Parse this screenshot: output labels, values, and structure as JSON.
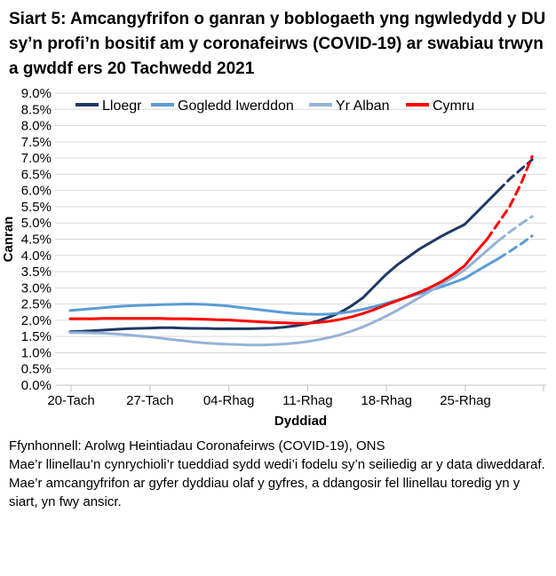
{
  "title": "Siart 5: Amcangyfrifon o ganran y boblogaeth yng ngwledydd y DU sy’n profi’n bositif am y coronafeirws (COVID-19) ar swabiau trwyn a gwddf ers 20 Tachwedd 2021",
  "chart_data": {
    "type": "line",
    "title": "",
    "xlabel": "Dyddiad",
    "ylabel": "Canran",
    "ylim": [
      0,
      9
    ],
    "ytick_step": 0.5,
    "ytick_suffix": "%",
    "grid": "horizontal",
    "legend_position": "top",
    "x_start_date": "20 Tachwedd 2021",
    "x_days_total": 42,
    "x_tick_labels": [
      "20-Tach",
      "27-Tach",
      "04-Rhag",
      "11-Rhag",
      "18-Rhag",
      "25-Rhag"
    ],
    "x_tick_day_indexes": [
      0,
      7,
      14,
      21,
      28,
      35
    ],
    "dashed_meaning": "llinellau toredig = amcangyfrifon mwy ansicr ar gyfer dyddiau olaf y gyfres",
    "series": [
      {
        "name": "Lloegr",
        "color": "#1f3864",
        "dash_from_index": 38,
        "values": [
          1.65,
          1.66,
          1.68,
          1.7,
          1.72,
          1.74,
          1.75,
          1.76,
          1.77,
          1.77,
          1.76,
          1.75,
          1.75,
          1.74,
          1.74,
          1.74,
          1.74,
          1.75,
          1.76,
          1.79,
          1.83,
          1.89,
          1.98,
          2.1,
          2.25,
          2.45,
          2.7,
          3.05,
          3.4,
          3.7,
          3.95,
          4.2,
          4.4,
          4.6,
          4.78,
          4.95,
          5.3,
          5.65,
          6.0,
          6.35,
          6.65,
          6.95
        ]
      },
      {
        "name": "Gogledd Iwerddon",
        "color": "#5b9bd5",
        "dash_from_index": 38,
        "values": [
          2.3,
          2.33,
          2.36,
          2.39,
          2.42,
          2.44,
          2.46,
          2.47,
          2.48,
          2.49,
          2.5,
          2.5,
          2.49,
          2.47,
          2.44,
          2.4,
          2.36,
          2.32,
          2.28,
          2.24,
          2.21,
          2.19,
          2.18,
          2.19,
          2.22,
          2.27,
          2.34,
          2.42,
          2.52,
          2.62,
          2.72,
          2.82,
          2.93,
          3.04,
          3.16,
          3.29,
          3.5,
          3.7,
          3.9,
          4.12,
          4.35,
          4.6
        ]
      },
      {
        "name": "Yr Alban",
        "color": "#95b3d7",
        "dash_from_index": 38,
        "values": [
          1.62,
          1.62,
          1.61,
          1.6,
          1.58,
          1.55,
          1.52,
          1.49,
          1.45,
          1.41,
          1.37,
          1.33,
          1.3,
          1.28,
          1.26,
          1.25,
          1.24,
          1.24,
          1.25,
          1.27,
          1.3,
          1.34,
          1.4,
          1.47,
          1.56,
          1.67,
          1.8,
          1.95,
          2.12,
          2.3,
          2.5,
          2.7,
          2.91,
          3.12,
          3.33,
          3.55,
          3.85,
          4.15,
          4.45,
          4.72,
          4.97,
          5.2
        ]
      },
      {
        "name": "Cymru",
        "color": "#ff0000",
        "dash_from_index": 37,
        "values": [
          2.05,
          2.05,
          2.05,
          2.06,
          2.06,
          2.06,
          2.06,
          2.06,
          2.06,
          2.05,
          2.05,
          2.04,
          2.03,
          2.02,
          2.01,
          1.99,
          1.97,
          1.95,
          1.93,
          1.92,
          1.91,
          1.91,
          1.93,
          1.97,
          2.03,
          2.11,
          2.21,
          2.33,
          2.47,
          2.6,
          2.73,
          2.87,
          3.02,
          3.2,
          3.42,
          3.68,
          4.1,
          4.5,
          5.0,
          5.5,
          6.2,
          7.05
        ]
      }
    ]
  },
  "colors": {
    "grid": "#d9d9d9",
    "axis": "#bfbfbf",
    "text": "#000000"
  },
  "footer": {
    "source": "Ffynhonnell: Arolwg Heintiadau Coronafeirws (COVID-19), ONS",
    "note": "Mae’r llinellau’n cynrychioli’r tueddiad sydd wedi’i fodelu sy’n seiliedig ar y data diweddaraf. Mae’r amcangyfrifon ar gyfer dyddiau olaf y gyfres, a ddangosir fel llinellau toredig yn y siart, yn fwy ansicr."
  }
}
